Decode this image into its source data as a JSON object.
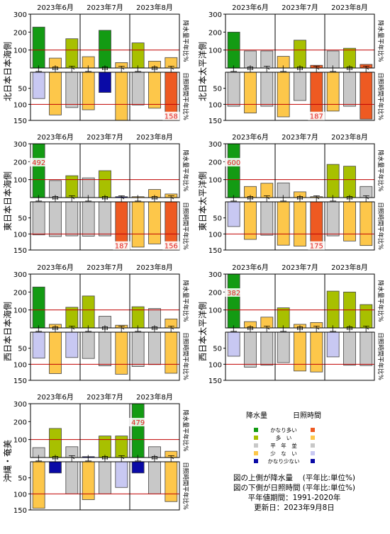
{
  "months": [
    "2023年6月",
    "2023年7月",
    "2023年8月"
  ],
  "decades": [
    "上",
    "中",
    "下"
  ],
  "precip_side_label": "降水量平年比%",
  "sun_side_label": "日照時間平年比%",
  "precip_ticks": [
    "300",
    "200",
    "100"
  ],
  "sun_ticks": [
    "50",
    "100",
    "150"
  ],
  "colors": {
    "much_above": "#139b13",
    "above": "#a8c000",
    "normal": "#c8c8c8",
    "below": "#fdc74a",
    "much_below_precip": "#0a0aa6",
    "much_above_sun": "#ee5a22",
    "much_below_sun": "#c8c8f2",
    "reference_line": "#c00000",
    "overflow_label": "#e02020"
  },
  "legend": {
    "precip_header": "降水量",
    "sun_header": "日照時間",
    "rows": [
      {
        "label": "かなり多い",
        "precip": "#139b13",
        "sun": "#ee5a22"
      },
      {
        "label": "多　い",
        "precip": "#a8c000",
        "sun": "#fdc74a"
      },
      {
        "label": "平　年　並",
        "precip": "#c8c8c8",
        "sun": "#c8c8c8"
      },
      {
        "label": "少　な　い",
        "precip": "#fdc74a",
        "sun": "#c8c8f2"
      },
      {
        "label": "かなり少ない",
        "precip": "#0a0aa6",
        "sun": "#0a0aa6"
      }
    ]
  },
  "info": {
    "line1": "図の上側が降水量　 (平年比:単位%)",
    "line2": "図の下側が日照時間 (平年比:単位%)",
    "line3": "平年値期間：1991-2020年",
    "line4": "更新日：2023年9月8日"
  },
  "chart_data": [
    {
      "type": "bar",
      "region": "北日本日本海側",
      "categories": [
        "6月上",
        "6月中",
        "6月下",
        "7月上",
        "7月中",
        "7月下",
        "8月上",
        "8月中",
        "8月下"
      ],
      "precip_values": [
        228,
        55,
        163,
        63,
        210,
        30,
        140,
        38,
        58
      ],
      "precip_colors": [
        "much_above",
        "below",
        "above",
        "below",
        "much_above",
        "below",
        "above",
        "below",
        "below"
      ],
      "precip_labels": [
        null,
        null,
        null,
        null,
        null,
        null,
        null,
        null,
        null
      ],
      "sun_values": [
        82,
        133,
        110,
        117,
        63,
        150,
        102,
        112,
        158
      ],
      "sun_colors": [
        "much_below_sun",
        "below",
        "normal",
        "below",
        "much_below_precip",
        "below",
        "normal",
        "below",
        "much_above_sun"
      ],
      "sun_labels": [
        null,
        null,
        null,
        null,
        null,
        null,
        null,
        null,
        "158"
      ],
      "ylim_precip": [
        0,
        300
      ],
      "ylim_sun": [
        0,
        150
      ]
    },
    {
      "type": "bar",
      "region": "北日本太平洋側",
      "categories": [
        "6月上",
        "6月中",
        "6月下",
        "7月上",
        "7月中",
        "7月下",
        "8月上",
        "8月中",
        "8月下"
      ],
      "precip_values": [
        200,
        95,
        95,
        65,
        155,
        15,
        95,
        110,
        20
      ],
      "precip_colors": [
        "much_above",
        "normal",
        "normal",
        "below",
        "above",
        "much_above_sun",
        "normal",
        "above",
        "much_above_sun"
      ],
      "precip_labels": [
        null,
        null,
        null,
        null,
        null,
        null,
        null,
        null,
        null
      ],
      "sun_values": [
        106,
        127,
        106,
        139,
        88,
        187,
        121,
        106,
        146
      ],
      "sun_colors": [
        "normal",
        "below",
        "normal",
        "below",
        "normal",
        "much_above_sun",
        "below",
        "normal",
        "much_above_sun"
      ],
      "sun_labels": [
        null,
        null,
        null,
        null,
        null,
        "187",
        null,
        null,
        null
      ],
      "ylim_precip": [
        0,
        300
      ],
      "ylim_sun": [
        0,
        150
      ]
    },
    {
      "type": "bar",
      "region": "東日本日本海側",
      "categories": [
        "6月上",
        "6月中",
        "6月下",
        "7月上",
        "7月中",
        "7月下",
        "8月上",
        "8月中",
        "8月下"
      ],
      "precip_values": [
        492,
        95,
        122,
        110,
        150,
        5,
        5,
        45,
        20
      ],
      "precip_colors": [
        "much_above",
        "normal",
        "above",
        "normal",
        "above",
        "much_below_precip",
        "below",
        "below",
        "below"
      ],
      "precip_labels": [
        "492",
        null,
        null,
        null,
        null,
        null,
        null,
        null,
        null
      ],
      "sun_values": [
        103,
        108,
        106,
        107,
        106,
        187,
        141,
        131,
        156
      ],
      "sun_colors": [
        "normal",
        "normal",
        "normal",
        "normal",
        "normal",
        "much_above_sun",
        "below",
        "below",
        "much_above_sun"
      ],
      "sun_labels": [
        null,
        null,
        null,
        null,
        null,
        "187",
        null,
        null,
        "156"
      ],
      "ylim_precip": [
        0,
        300
      ],
      "ylim_sun": [
        0,
        150
      ]
    },
    {
      "type": "bar",
      "region": "東日本太平洋側",
      "categories": [
        "6月上",
        "6月中",
        "6月下",
        "7月上",
        "7月中",
        "7月下",
        "8月上",
        "8月中",
        "8月下"
      ],
      "precip_values": [
        600,
        62,
        80,
        82,
        32,
        5,
        185,
        175,
        62
      ],
      "precip_colors": [
        "much_above",
        "below",
        "below",
        "normal",
        "below",
        "below",
        "above",
        "above",
        "normal"
      ],
      "precip_labels": [
        "600",
        null,
        null,
        null,
        null,
        null,
        null,
        null,
        null
      ],
      "sun_values": [
        77,
        117,
        104,
        135,
        138,
        175,
        106,
        122,
        136
      ],
      "sun_colors": [
        "much_below_sun",
        "below",
        "normal",
        "below",
        "below",
        "much_above_sun",
        "normal",
        "below",
        "below"
      ],
      "sun_labels": [
        null,
        null,
        null,
        null,
        null,
        "175",
        null,
        null,
        null
      ],
      "ylim_precip": [
        0,
        300
      ],
      "ylim_sun": [
        0,
        150
      ]
    },
    {
      "type": "bar",
      "region": "西日本日本海側",
      "categories": [
        "6月上",
        "6月中",
        "6月下",
        "7月上",
        "7月中",
        "7月下",
        "8月上",
        "8月中",
        "8月下"
      ],
      "precip_values": [
        228,
        20,
        115,
        178,
        65,
        15,
        118,
        108,
        50
      ],
      "precip_colors": [
        "much_above",
        "below",
        "above",
        "above",
        "normal",
        "below",
        "above",
        "normal",
        "below"
      ],
      "precip_labels": [
        null,
        null,
        null,
        null,
        null,
        null,
        null,
        null,
        null
      ],
      "sun_values": [
        81,
        129,
        79,
        82,
        105,
        131,
        107,
        101,
        128
      ],
      "sun_colors": [
        "much_below_sun",
        "below",
        "much_below_sun",
        "normal",
        "normal",
        "below",
        "normal",
        "normal",
        "below"
      ],
      "sun_labels": [
        null,
        null,
        null,
        null,
        null,
        null,
        null,
        null,
        null
      ],
      "ylim_precip": [
        0,
        300
      ],
      "ylim_sun": [
        0,
        150
      ]
    },
    {
      "type": "bar",
      "region": "西日本太平洋側",
      "categories": [
        "6月上",
        "6月中",
        "6月下",
        "7月上",
        "7月中",
        "7月下",
        "8月上",
        "8月中",
        "8月下"
      ],
      "precip_values": [
        382,
        35,
        60,
        112,
        20,
        30,
        205,
        200,
        130
      ],
      "precip_colors": [
        "much_above",
        "below",
        "below",
        "above",
        "below",
        "below",
        "above",
        "above",
        "above"
      ],
      "precip_labels": [
        "382",
        null,
        null,
        null,
        null,
        null,
        null,
        null,
        null
      ],
      "sun_values": [
        75,
        109,
        103,
        95,
        121,
        124,
        77,
        103,
        104
      ],
      "sun_colors": [
        "much_below_sun",
        "normal",
        "normal",
        "normal",
        "below",
        "below",
        "much_below_sun",
        "normal",
        "normal"
      ],
      "sun_labels": [
        null,
        null,
        null,
        null,
        null,
        null,
        null,
        null,
        null
      ],
      "ylim_precip": [
        0,
        300
      ],
      "ylim_sun": [
        0,
        150
      ]
    },
    {
      "type": "bar",
      "region": "沖縄・奄美",
      "categories": [
        "6月上",
        "6月中",
        "6月下",
        "7月上",
        "7月中",
        "7月下",
        "8月上",
        "8月中",
        "8月下"
      ],
      "precip_values": [
        55,
        162,
        60,
        5,
        120,
        120,
        479,
        60,
        35
      ],
      "precip_colors": [
        "normal",
        "above",
        "normal",
        "much_below_precip",
        "above",
        "above",
        "much_above",
        "normal",
        "below"
      ],
      "precip_labels": [
        null,
        null,
        null,
        null,
        null,
        null,
        "479",
        null,
        null
      ],
      "sun_values": [
        145,
        35,
        100,
        118,
        100,
        80,
        35,
        100,
        124
      ],
      "sun_colors": [
        "below",
        "much_below_precip",
        "normal",
        "below",
        "normal",
        "much_below_sun",
        "much_below_precip",
        "normal",
        "below"
      ],
      "sun_labels": [
        null,
        null,
        null,
        null,
        null,
        null,
        null,
        null,
        null
      ],
      "ylim_precip": [
        0,
        300
      ],
      "ylim_sun": [
        0,
        150
      ]
    }
  ]
}
